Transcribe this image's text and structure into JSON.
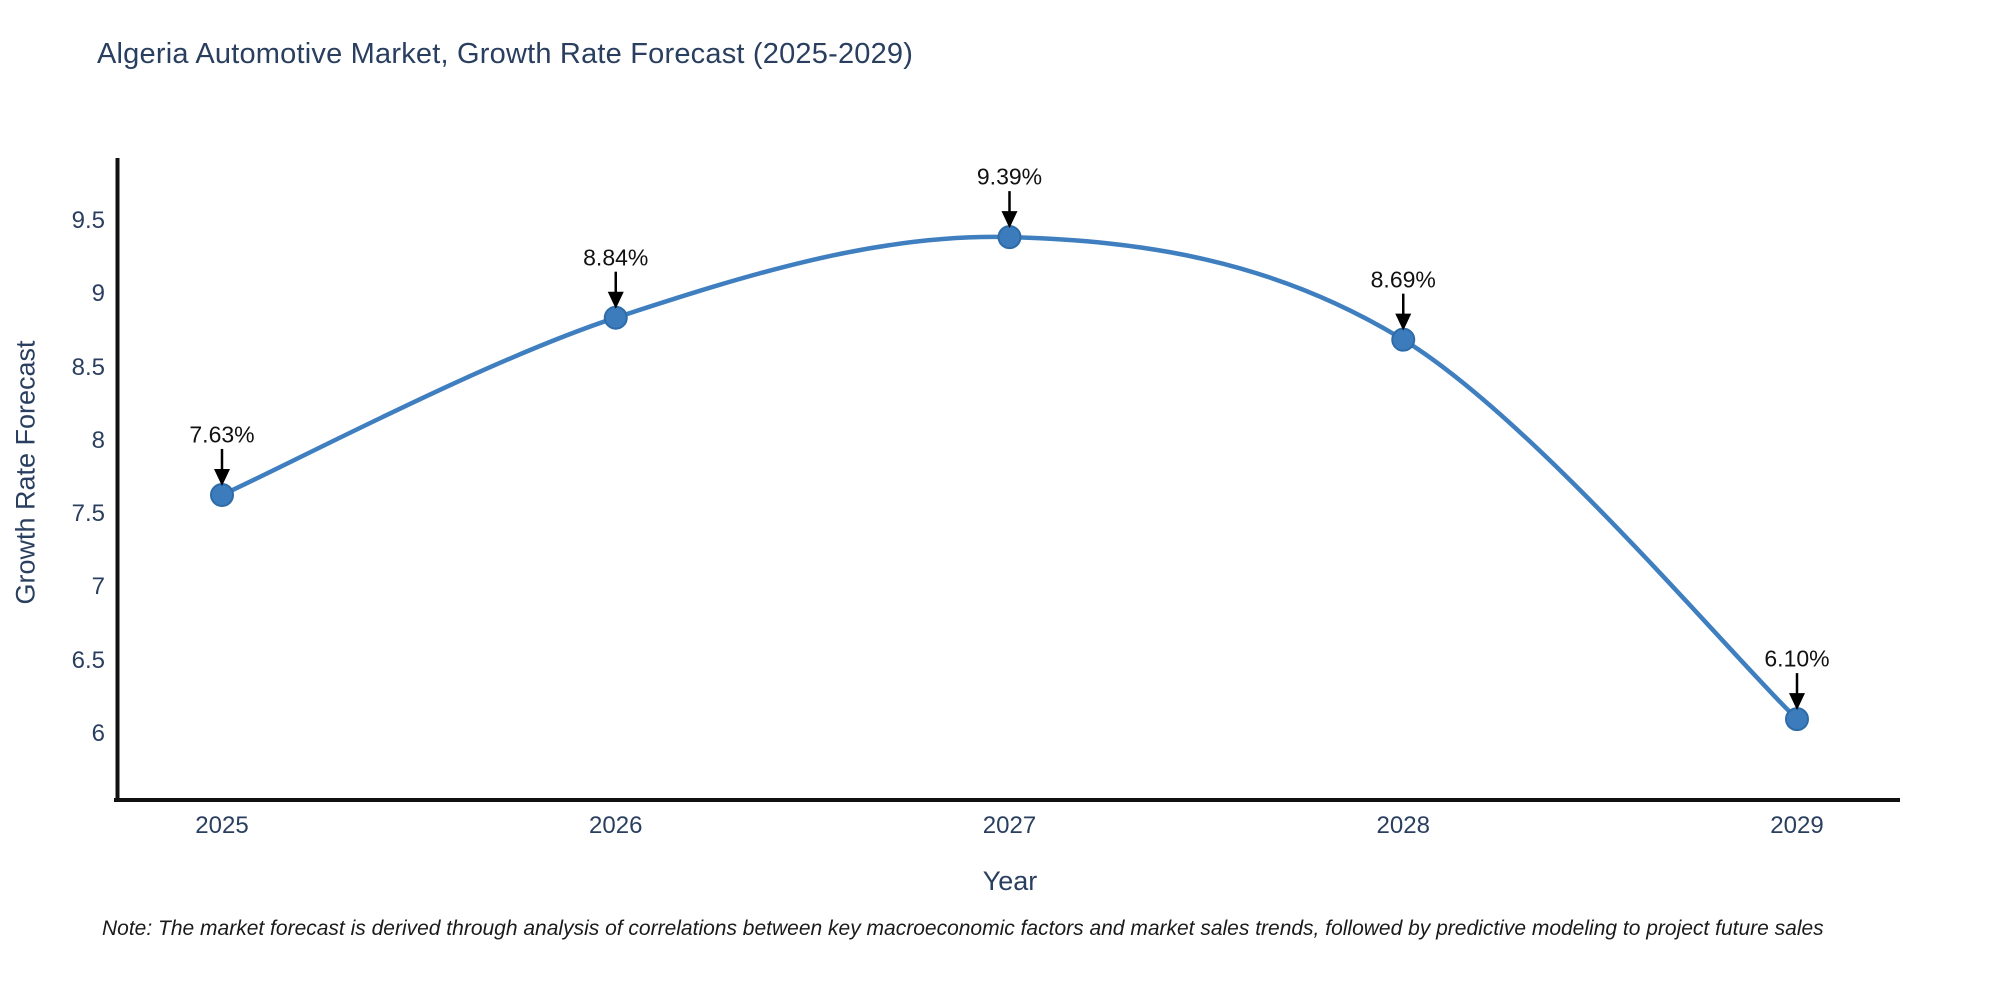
{
  "chart": {
    "title": "Algeria Automotive Market, Growth Rate Forecast (2025-2029)",
    "x_axis_title": "Year",
    "y_axis_title": "Growth Rate Forecast",
    "note": "Note: The market forecast is derived through analysis of correlations between key macroeconomic factors and market sales trends, followed by predictive modeling to project future sales"
  },
  "chart_data": {
    "type": "line",
    "title": "Algeria Automotive Market, Growth Rate Forecast (2025-2029)",
    "xlabel": "Year",
    "ylabel": "Growth Rate Forecast",
    "x": [
      2025,
      2026,
      2027,
      2028,
      2029
    ],
    "x_tick_labels": [
      "2025",
      "2026",
      "2027",
      "2028",
      "2029"
    ],
    "series": [
      {
        "name": "Growth Rate Forecast",
        "values": [
          7.63,
          8.84,
          9.39,
          8.69,
          6.1
        ],
        "point_labels": [
          "7.63%",
          "8.84%",
          "9.39%",
          "8.69%",
          "6.10%"
        ]
      }
    ],
    "y_ticks": [
      9.5,
      9,
      8.5,
      8,
      7.5,
      7,
      6.5,
      6
    ],
    "ylim": [
      5.55,
      9.95
    ],
    "grid": false,
    "legend_position": "none",
    "line_style": "spline",
    "colors": {
      "line": "#3f7fbf",
      "marker_fill": "#3c7cbd",
      "marker_edge": "#2e6ca8",
      "axis_line": "#111111",
      "title_text": "#2a3f5f",
      "tick_text": "#2a3f5f",
      "annotation_text": "#111111",
      "annotation_arrow": "#000000"
    }
  }
}
